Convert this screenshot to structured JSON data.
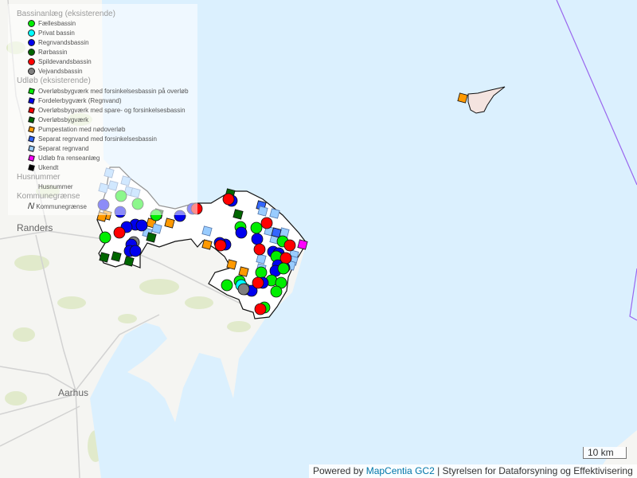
{
  "legend": {
    "bassin_header": "Bassinanlæg (eksisterende)",
    "bassin_items": [
      {
        "label": "Fællesbassin",
        "color": "#00ee00"
      },
      {
        "label": "Privat bassin",
        "color": "#00ffff"
      },
      {
        "label": "Regnvandsbassin",
        "color": "#0000ee"
      },
      {
        "label": "Rørbassin",
        "color": "#006600"
      },
      {
        "label": "Spildevandsbassin",
        "color": "#ff0000"
      },
      {
        "label": "Vejvandsbassin",
        "color": "#808080"
      }
    ],
    "udlob_header": "Udløb (eksisterende)",
    "udlob_items": [
      {
        "label": "Overløbsbygværk med forsinkelsesbassin på overløb",
        "color": "#00ee00"
      },
      {
        "label": "Fordelerbygværk (Regnvand)",
        "color": "#0000ee"
      },
      {
        "label": "Overløbsbygværk med spare- og forsinkelsesbassin",
        "color": "#ff0000"
      },
      {
        "label": "Overløbsbygværk",
        "color": "#006600"
      },
      {
        "label": "Pumpestation med nødoverløb",
        "color": "#ff9900"
      },
      {
        "label": "Separat regnvand med forsinkelsesbassin",
        "color": "#3366ff"
      },
      {
        "label": "Separat regnvand",
        "color": "#99ccff"
      },
      {
        "label": "Udløb fra renseanlæg",
        "color": "#ff00ff"
      },
      {
        "label": "Ukendt",
        "color": "#000000"
      }
    ],
    "husnummer_header": "Husnummer",
    "husnummer_item": "Husnummer",
    "kommune_header": "Kommunegrænse",
    "kommune_item": "Kommunegrænse"
  },
  "places": {
    "randers": "Randers",
    "aarhus": "Aarhus"
  },
  "scale": "10 km",
  "attribution": {
    "prefix": "Powered by ",
    "link": "MapCentia GC2",
    "suffix": " | Styrelsen for Dataforsyning og Effektivisering"
  },
  "colors": {
    "sea": "#dbf0fe",
    "land": "#f5f5f2",
    "study_area": "#ffffff",
    "municipal_border": "#9966ee"
  }
}
